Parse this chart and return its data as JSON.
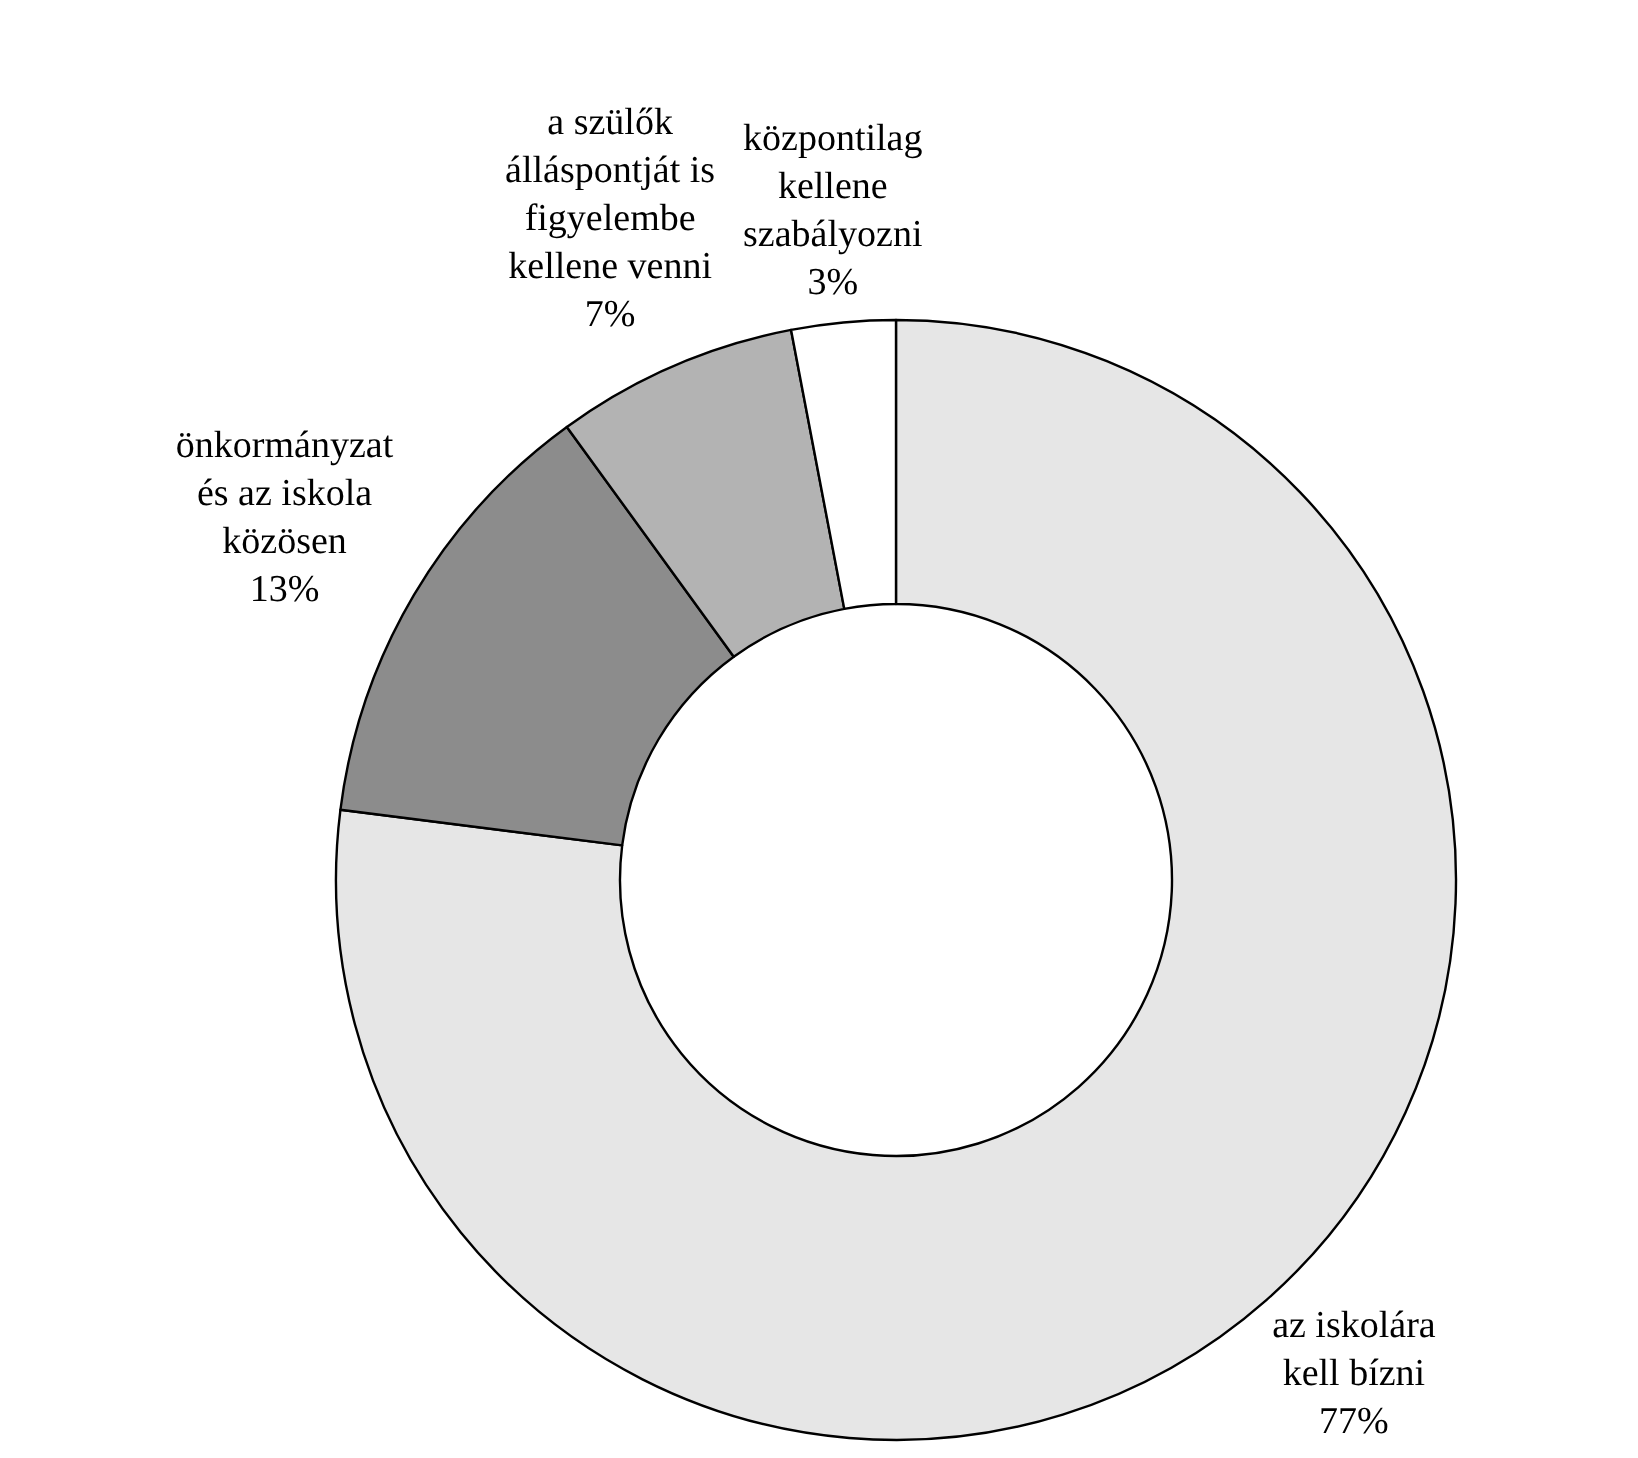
{
  "chart_data": {
    "type": "donut",
    "categories": [
      "az iskolára\nkell bízni",
      "önkormányzat\nés az iskola\nközösen",
      "a szülők\nálláspontját is\nfigyelembe\nkellene venni",
      "központilag\nkellene\nszabályozni"
    ],
    "values": [
      77,
      13,
      7,
      3
    ],
    "colors": [
      "#e6e6e6",
      "#8c8c8c",
      "#b3b3b3",
      "#ffffff"
    ],
    "value_labels": [
      "77%",
      "13%",
      "7%",
      "3%"
    ],
    "legend": false
  }
}
